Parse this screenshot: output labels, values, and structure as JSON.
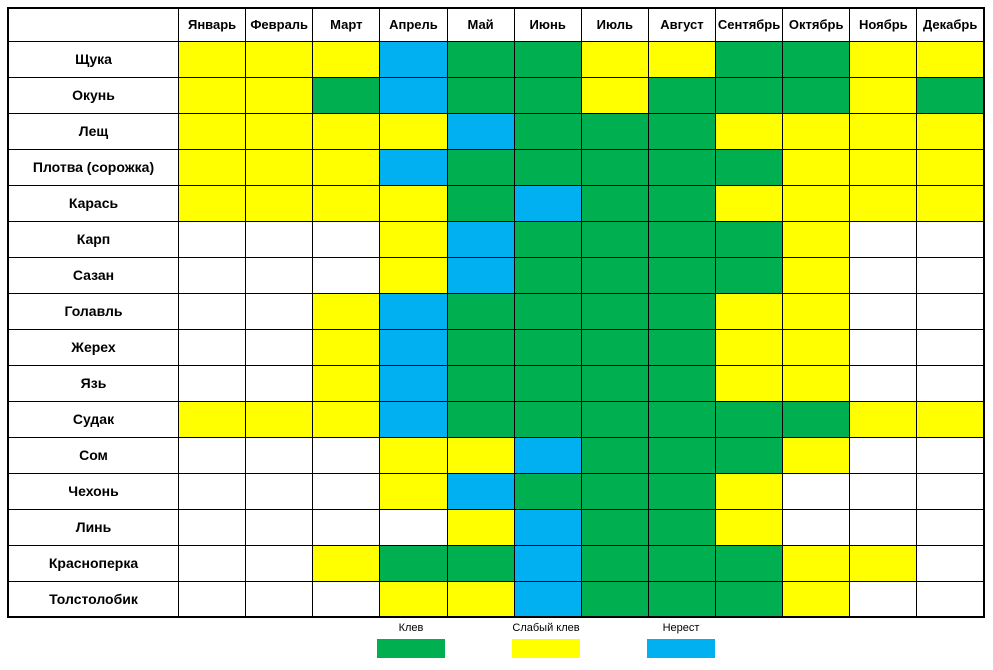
{
  "chart_data": {
    "type": "heatmap",
    "title": "",
    "columns": [
      "Январь",
      "Февраль",
      "Март",
      "Апрель",
      "Май",
      "Июнь",
      "Июль",
      "Август",
      "Сентябрь",
      "Октябрь",
      "Ноябрь",
      "Декабрь"
    ],
    "corner_label": "",
    "value_colors": {
      "bite": "#00B050",
      "weak": "#FFFF00",
      "spawn": "#00B0F0",
      "none": "#FFFFFF"
    },
    "rows": [
      {
        "name": "Щука",
        "values": [
          "weak",
          "weak",
          "weak",
          "spawn",
          "bite",
          "bite",
          "weak",
          "weak",
          "bite",
          "bite",
          "weak",
          "weak"
        ]
      },
      {
        "name": "Окунь",
        "values": [
          "weak",
          "weak",
          "bite",
          "spawn",
          "bite",
          "bite",
          "weak",
          "bite",
          "bite",
          "bite",
          "weak",
          "bite"
        ]
      },
      {
        "name": "Лещ",
        "values": [
          "weak",
          "weak",
          "weak",
          "weak",
          "spawn",
          "bite",
          "bite",
          "bite",
          "weak",
          "weak",
          "weak",
          "weak"
        ]
      },
      {
        "name": "Плотва (сорожка)",
        "values": [
          "weak",
          "weak",
          "weak",
          "spawn",
          "bite",
          "bite",
          "bite",
          "bite",
          "bite",
          "weak",
          "weak",
          "weak"
        ]
      },
      {
        "name": "Карась",
        "values": [
          "weak",
          "weak",
          "weak",
          "weak",
          "bite",
          "spawn",
          "bite",
          "bite",
          "weak",
          "weak",
          "weak",
          "weak"
        ]
      },
      {
        "name": "Карп",
        "values": [
          "none",
          "none",
          "none",
          "weak",
          "spawn",
          "bite",
          "bite",
          "bite",
          "bite",
          "weak",
          "none",
          "none"
        ]
      },
      {
        "name": "Сазан",
        "values": [
          "none",
          "none",
          "none",
          "weak",
          "spawn",
          "bite",
          "bite",
          "bite",
          "bite",
          "weak",
          "none",
          "none"
        ]
      },
      {
        "name": "Голавль",
        "values": [
          "none",
          "none",
          "weak",
          "spawn",
          "bite",
          "bite",
          "bite",
          "bite",
          "weak",
          "weak",
          "none",
          "none"
        ]
      },
      {
        "name": "Жерех",
        "values": [
          "none",
          "none",
          "weak",
          "spawn",
          "bite",
          "bite",
          "bite",
          "bite",
          "weak",
          "weak",
          "none",
          "none"
        ]
      },
      {
        "name": "Язь",
        "values": [
          "none",
          "none",
          "weak",
          "spawn",
          "bite",
          "bite",
          "bite",
          "bite",
          "weak",
          "weak",
          "none",
          "none"
        ]
      },
      {
        "name": "Судак",
        "values": [
          "weak",
          "weak",
          "weak",
          "spawn",
          "bite",
          "bite",
          "bite",
          "bite",
          "bite",
          "bite",
          "weak",
          "weak"
        ]
      },
      {
        "name": "Сом",
        "values": [
          "none",
          "none",
          "none",
          "weak",
          "weak",
          "spawn",
          "bite",
          "bite",
          "bite",
          "weak",
          "none",
          "none"
        ]
      },
      {
        "name": "Чехонь",
        "values": [
          "none",
          "none",
          "none",
          "weak",
          "spawn",
          "bite",
          "bite",
          "bite",
          "weak",
          "none",
          "none",
          "none"
        ]
      },
      {
        "name": "Линь",
        "values": [
          "none",
          "none",
          "none",
          "none",
          "weak",
          "spawn",
          "bite",
          "bite",
          "weak",
          "none",
          "none",
          "none"
        ]
      },
      {
        "name": "Красноперка",
        "values": [
          "none",
          "none",
          "weak",
          "bite",
          "bite",
          "spawn",
          "bite",
          "bite",
          "bite",
          "weak",
          "weak",
          "none"
        ]
      },
      {
        "name": "Толстолобик",
        "values": [
          "none",
          "none",
          "none",
          "weak",
          "weak",
          "spawn",
          "bite",
          "bite",
          "bite",
          "weak",
          "none",
          "none"
        ]
      }
    ],
    "legend": [
      {
        "label": "Клев",
        "value": "bite",
        "color": "#00B050"
      },
      {
        "label": "Слабый клев",
        "value": "weak",
        "color": "#FFFF00"
      },
      {
        "label": "Нерест",
        "value": "spawn",
        "color": "#00B0F0"
      }
    ],
    "layout": {
      "grid": true,
      "border_color": "#000000",
      "background": "#FFFFFF",
      "legend_position": "bottom"
    }
  }
}
